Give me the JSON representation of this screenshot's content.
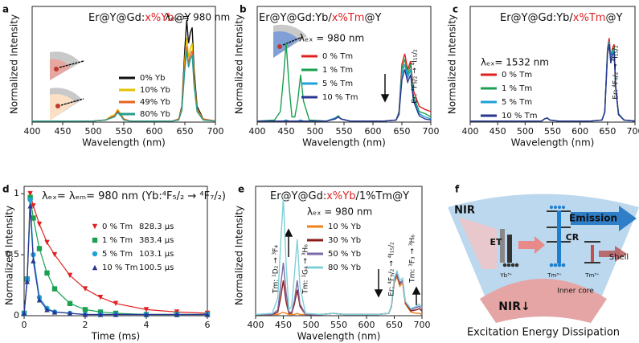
{
  "chart_data": [
    {
      "type": "line",
      "label": "a",
      "title": [
        {
          "text": "Er@Y@Gd:",
          "color": "#111"
        },
        {
          "text": "x%Yb",
          "color": "#e02020"
        },
        {
          "text": "@Y",
          "color": "#111"
        }
      ],
      "excitation": "λₑₓ = 980 nm",
      "x_label": "Wavelength (nm)",
      "y_label": "Normalized Intensity",
      "xlim": [
        400,
        700
      ],
      "xticks": [
        400,
        450,
        500,
        550,
        600,
        650,
        700
      ],
      "ylim": [
        0,
        1.1
      ],
      "x": [
        400,
        450,
        500,
        520,
        530,
        535,
        540,
        545,
        550,
        560,
        600,
        630,
        640,
        645,
        650,
        653,
        656,
        659,
        662,
        665,
        670,
        680,
        700
      ],
      "series": [
        {
          "name": "0% Yb",
          "color": "#111111",
          "values": [
            0.01,
            0.01,
            0.01,
            0.02,
            0.05,
            0.06,
            0.1,
            0.07,
            0.03,
            0.01,
            0.01,
            0.01,
            0.03,
            0.15,
            0.7,
            0.97,
            0.75,
            0.85,
            0.9,
            0.5,
            0.15,
            0.03,
            0.01
          ]
        },
        {
          "name": "10% Yb",
          "color": "#e5c100",
          "values": [
            0.01,
            0.01,
            0.01,
            0.02,
            0.06,
            0.07,
            0.12,
            0.08,
            0.03,
            0.01,
            0.01,
            0.01,
            0.03,
            0.13,
            0.6,
            0.8,
            0.62,
            0.7,
            0.75,
            0.42,
            0.12,
            0.03,
            0.01
          ]
        },
        {
          "name": "49% Yb",
          "color": "#e8611a",
          "values": [
            0.01,
            0.01,
            0.01,
            0.02,
            0.05,
            0.06,
            0.11,
            0.07,
            0.03,
            0.01,
            0.01,
            0.01,
            0.03,
            0.12,
            0.55,
            0.72,
            0.56,
            0.64,
            0.68,
            0.38,
            0.11,
            0.03,
            0.01
          ]
        },
        {
          "name": "80% Yb",
          "color": "#2a9d8f",
          "values": [
            0.01,
            0.01,
            0.01,
            0.02,
            0.04,
            0.05,
            0.09,
            0.06,
            0.02,
            0.01,
            0.01,
            0.01,
            0.02,
            0.11,
            0.5,
            0.68,
            0.52,
            0.6,
            0.64,
            0.35,
            0.1,
            0.02,
            0.01
          ]
        }
      ],
      "annotations": []
    },
    {
      "type": "line",
      "label": "b",
      "title": [
        {
          "text": "Er@Y@Gd:Yb/",
          "color": "#111"
        },
        {
          "text": "x%Tm",
          "color": "#e02020"
        },
        {
          "text": "@Y",
          "color": "#111"
        }
      ],
      "excitation": "λₑₓ = 980 nm",
      "x_label": "Wavelength (nm)",
      "y_label": "Normalized Intensity",
      "xlim": [
        400,
        700
      ],
      "xticks": [
        400,
        450,
        500,
        550,
        600,
        650,
        700
      ],
      "ylim": [
        0,
        1.1
      ],
      "x": [
        400,
        430,
        440,
        445,
        450,
        455,
        460,
        465,
        470,
        475,
        480,
        490,
        520,
        535,
        540,
        545,
        560,
        620,
        640,
        645,
        650,
        655,
        660,
        665,
        670,
        680,
        690,
        700
      ],
      "series": [
        {
          "name": "0 % Tm",
          "color": "#e02020",
          "values": [
            0.01,
            0.01,
            0.01,
            0.01,
            0.01,
            0.01,
            0.01,
            0.01,
            0.01,
            0.01,
            0.01,
            0.01,
            0.01,
            0.04,
            0.05,
            0.03,
            0.01,
            0.01,
            0.02,
            0.1,
            0.55,
            0.65,
            0.5,
            0.58,
            0.3,
            0.15,
            0.12,
            0.1
          ]
        },
        {
          "name": "1 % Tm",
          "color": "#1aa050",
          "values": [
            0.01,
            0.02,
            0.1,
            0.4,
            0.75,
            0.35,
            0.05,
            0.05,
            0.2,
            0.45,
            0.2,
            0.02,
            0.01,
            0.04,
            0.06,
            0.03,
            0.01,
            0.01,
            0.02,
            0.09,
            0.5,
            0.6,
            0.45,
            0.55,
            0.25,
            0.1,
            0.08,
            0.05
          ]
        },
        {
          "name": "5 % Tm",
          "color": "#1ea0d8",
          "values": [
            0.01,
            0.01,
            0.01,
            0.01,
            0.02,
            0.01,
            0.01,
            0.01,
            0.01,
            0.02,
            0.01,
            0.01,
            0.01,
            0.04,
            0.05,
            0.03,
            0.01,
            0.01,
            0.02,
            0.08,
            0.45,
            0.55,
            0.42,
            0.5,
            0.22,
            0.08,
            0.05,
            0.03
          ]
        },
        {
          "name": "10 % Tm",
          "color": "#2a3590",
          "values": [
            0.01,
            0.01,
            0.01,
            0.01,
            0.01,
            0.01,
            0.01,
            0.01,
            0.01,
            0.01,
            0.01,
            0.01,
            0.01,
            0.03,
            0.05,
            0.03,
            0.01,
            0.01,
            0.02,
            0.07,
            0.4,
            0.5,
            0.38,
            0.45,
            0.2,
            0.06,
            0.03,
            0.02
          ]
        }
      ],
      "annotations": [
        "Er: ⁴F₉/₂ → ⁴I₁₅/₂"
      ]
    },
    {
      "type": "line",
      "label": "c",
      "title": [
        {
          "text": "Er@Y@Gd:Yb/",
          "color": "#111"
        },
        {
          "text": "x%Tm",
          "color": "#e02020"
        },
        {
          "text": "@Y",
          "color": "#111"
        }
      ],
      "excitation": "λₑₓ= 1532 nm",
      "x_label": "Wavelength (nm)",
      "y_label": "Normalized Intensity",
      "xlim": [
        400,
        700
      ],
      "xticks": [
        400,
        450,
        500,
        550,
        600,
        650,
        700
      ],
      "ylim": [
        0,
        1.1
      ],
      "x": [
        400,
        500,
        530,
        535,
        540,
        545,
        560,
        620,
        640,
        645,
        650,
        653,
        656,
        659,
        662,
        665,
        670,
        680,
        700
      ],
      "series": [
        {
          "name": "0 % Tm",
          "color": "#e02020",
          "values": [
            0.01,
            0.01,
            0.01,
            0.03,
            0.04,
            0.02,
            0.01,
            0.01,
            0.02,
            0.1,
            0.7,
            0.8,
            0.62,
            0.7,
            0.74,
            0.35,
            0.08,
            0.02,
            0.01
          ]
        },
        {
          "name": "1 % Tm",
          "color": "#1aa050",
          "values": [
            0.01,
            0.01,
            0.01,
            0.03,
            0.04,
            0.02,
            0.01,
            0.01,
            0.02,
            0.1,
            0.68,
            0.77,
            0.6,
            0.68,
            0.7,
            0.33,
            0.08,
            0.02,
            0.01
          ]
        },
        {
          "name": "5 % Tm",
          "color": "#1ea0d8",
          "values": [
            0.01,
            0.01,
            0.01,
            0.03,
            0.04,
            0.02,
            0.01,
            0.01,
            0.02,
            0.1,
            0.66,
            0.76,
            0.58,
            0.66,
            0.68,
            0.32,
            0.07,
            0.02,
            0.01
          ]
        },
        {
          "name": "10 % Tm",
          "color": "#2a3590",
          "values": [
            0.01,
            0.01,
            0.01,
            0.03,
            0.04,
            0.02,
            0.01,
            0.01,
            0.02,
            0.09,
            0.64,
            0.74,
            0.56,
            0.64,
            0.66,
            0.31,
            0.07,
            0.02,
            0.01
          ]
        }
      ],
      "annotations": [
        "Er: ⁴F₉/₂ → ⁴I₁₅/₂"
      ]
    },
    {
      "type": "decay",
      "label": "d",
      "title": [
        {
          "text": "λₑₓ= λₑₘ= 980 nm  (Yb:⁴F₅/₂ → ⁴F₇/₂)",
          "color": "#111"
        }
      ],
      "x_label": "Time (ms)",
      "y_label": "Normalized Intensity",
      "xlim": [
        0,
        6
      ],
      "xticks": [
        0,
        2,
        4,
        6
      ],
      "ylim": [
        0,
        1.06
      ],
      "yticks": [
        0,
        0.5,
        1
      ],
      "x": [
        0,
        0.1,
        0.2,
        0.3,
        0.5,
        0.75,
        1,
        1.5,
        2,
        2.5,
        3,
        4,
        5,
        6
      ],
      "series": [
        {
          "name": "0 % Tm",
          "lifetime": "828.3 μs",
          "color": "#e02020",
          "marker": "triangle-down",
          "values": [
            0.02,
            0.3,
            1.0,
            0.9,
            0.75,
            0.6,
            0.5,
            0.33,
            0.22,
            0.15,
            0.1,
            0.05,
            0.03,
            0.02
          ]
        },
        {
          "name": "1 % Tm",
          "lifetime": "383.4 μs",
          "color": "#1aa050",
          "marker": "square",
          "values": [
            0.02,
            0.3,
            0.97,
            0.8,
            0.55,
            0.35,
            0.22,
            0.1,
            0.05,
            0.03,
            0.02,
            0.01,
            0.01,
            0.01
          ]
        },
        {
          "name": "5 % Tm",
          "lifetime": "103.1 μs",
          "color": "#1ea0d8",
          "marker": "circle",
          "values": [
            0.02,
            0.3,
            0.95,
            0.5,
            0.15,
            0.06,
            0.03,
            0.02,
            0.01,
            0.01,
            0.01,
            0.01,
            0.01,
            0.01
          ]
        },
        {
          "name": "10 % Tm",
          "lifetime": "100.5 μs",
          "color": "#2a3590",
          "marker": "triangle-up",
          "values": [
            0.02,
            0.28,
            0.9,
            0.45,
            0.13,
            0.05,
            0.03,
            0.02,
            0.01,
            0.01,
            0.01,
            0.01,
            0.01,
            0.01
          ]
        }
      ]
    },
    {
      "type": "line",
      "label": "e",
      "title": [
        {
          "text": "Er@Y@Gd:",
          "color": "#111"
        },
        {
          "text": "x%Yb",
          "color": "#e02020"
        },
        {
          "text": "/1%Tm@Y",
          "color": "#111"
        }
      ],
      "excitation": "λₑₓ = 980 nm",
      "x_label": "Wavelength (nm)",
      "y_label": "Normalized Intensity",
      "xlim": [
        400,
        700
      ],
      "xticks": [
        400,
        450,
        500,
        550,
        600,
        650,
        700
      ],
      "ylim": [
        0,
        1.1
      ],
      "x": [
        400,
        430,
        440,
        445,
        450,
        455,
        460,
        465,
        470,
        475,
        480,
        490,
        520,
        540,
        560,
        620,
        640,
        645,
        650,
        655,
        660,
        665,
        670,
        680,
        690,
        695,
        700
      ],
      "series": [
        {
          "name": "10 % Yb",
          "color": "#f07f1a",
          "values": [
            0.01,
            0.01,
            0.01,
            0.02,
            0.03,
            0.02,
            0.01,
            0.01,
            0.01,
            0.02,
            0.01,
            0.01,
            0.01,
            0.02,
            0.01,
            0.01,
            0.02,
            0.08,
            0.28,
            0.33,
            0.25,
            0.28,
            0.1,
            0.03,
            0.02,
            0.02,
            0.01
          ]
        },
        {
          "name": "30 % Yb",
          "color": "#8b1a1a",
          "values": [
            0.01,
            0.01,
            0.03,
            0.15,
            0.3,
            0.12,
            0.02,
            0.02,
            0.1,
            0.22,
            0.08,
            0.01,
            0.01,
            0.02,
            0.01,
            0.01,
            0.02,
            0.08,
            0.3,
            0.35,
            0.27,
            0.3,
            0.11,
            0.04,
            0.05,
            0.06,
            0.04
          ]
        },
        {
          "name": "50 % Yb",
          "color": "#7a6aa8",
          "values": [
            0.01,
            0.01,
            0.05,
            0.25,
            0.45,
            0.2,
            0.03,
            0.03,
            0.13,
            0.3,
            0.1,
            0.01,
            0.01,
            0.02,
            0.01,
            0.01,
            0.02,
            0.08,
            0.3,
            0.36,
            0.28,
            0.3,
            0.12,
            0.05,
            0.07,
            0.08,
            0.06
          ]
        },
        {
          "name": "80 % Yb",
          "color": "#7fd0d8",
          "values": [
            0.01,
            0.02,
            0.15,
            0.6,
            1.0,
            0.45,
            0.05,
            0.08,
            0.35,
            0.65,
            0.25,
            0.02,
            0.01,
            0.02,
            0.01,
            0.01,
            0.02,
            0.09,
            0.32,
            0.38,
            0.3,
            0.32,
            0.12,
            0.06,
            0.08,
            0.1,
            0.07
          ]
        }
      ],
      "annotations": [
        "Tm: ¹D₂ → ³F₄",
        "Tm: ¹G₄ → ³H₆",
        "Er: ⁴F₉/₂ → ⁴I₁₅/₂",
        "Tm: ³F₃ → ³H₆"
      ]
    }
  ],
  "diagram": {
    "label": "f",
    "title": "Excitation Energy Dissipation",
    "labels": [
      "NIR",
      "ET",
      "Emission",
      "CR",
      "Shell",
      "Yb³⁺",
      "Tm³⁺",
      "Tm³⁺",
      "Inner core",
      "NIR↓"
    ]
  }
}
